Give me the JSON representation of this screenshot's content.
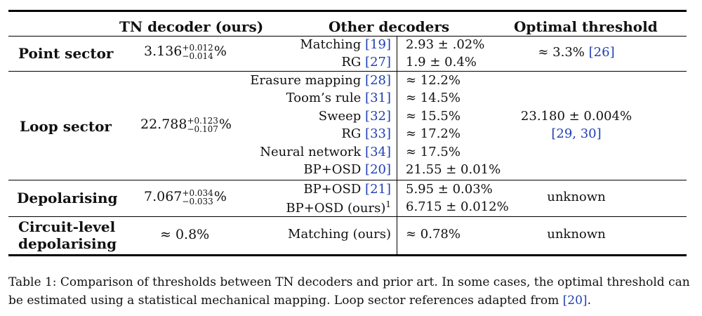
{
  "table": {
    "headers": {
      "tn": "TN decoder (ours)",
      "other": "Other decoders",
      "optimal": "Optimal threshold"
    },
    "rows": [
      {
        "label": "Point sector",
        "tn_base": "3.136",
        "tn_sup": "+0.012",
        "tn_sub": "−0.014",
        "tn_unit": "%",
        "decoders": [
          {
            "name": "Matching",
            "ref": "[19]",
            "value": "2.93 ± .02%"
          },
          {
            "name": "RG",
            "ref": "[27]",
            "value": "1.9 ± 0.4%"
          }
        ],
        "optimal": "≈ 3.3%",
        "optimal_ref": "[26]"
      },
      {
        "label": "Loop sector",
        "tn_base": "22.788",
        "tn_sup": "+0.123",
        "tn_sub": "−0.107",
        "tn_unit": "%",
        "decoders": [
          {
            "name": "Erasure mapping",
            "ref": "[28]",
            "value": "≈ 12.2%"
          },
          {
            "name": "Toom’s rule",
            "ref": "[31]",
            "value": "≈ 14.5%"
          },
          {
            "name": "Sweep",
            "ref": "[32]",
            "value": "≈ 15.5%"
          },
          {
            "name": "RG",
            "ref": "[33]",
            "value": "≈ 17.2%"
          },
          {
            "name": "Neural network",
            "ref": "[34]",
            "value": "≈ 17.5%"
          },
          {
            "name": "BP+OSD",
            "ref": "[20]",
            "value": "21.55 ± 0.01%"
          }
        ],
        "optimal": "23.180 ± 0.004%",
        "optimal_ref": "[29, 30]"
      },
      {
        "label": "Depolarising",
        "tn_base": "7.067",
        "tn_sup": "+0.034",
        "tn_sub": "−0.033",
        "tn_unit": "%",
        "decoders": [
          {
            "name": "BP+OSD",
            "ref": "[21]",
            "value": "5.95 ± 0.03%"
          },
          {
            "name": "BP+OSD (ours)",
            "ref": "1",
            "value": "6.715 ± 0.012%"
          }
        ],
        "optimal": "unknown"
      },
      {
        "label_line1": "Circuit-level",
        "label_line2": "depolarising",
        "tn_plain": "≈ 0.8%",
        "decoders": [
          {
            "name": "Matching (ours)",
            "value": "≈ 0.78%"
          }
        ],
        "optimal": "unknown"
      }
    ]
  },
  "caption": {
    "text": "Table 1: Comparison of thresholds between TN decoders and prior art. In some cases, the optimal threshold can be estimated using a statistical mechanical mapping. Loop sector references adapted from ",
    "ref": "[20]",
    "end": "."
  }
}
